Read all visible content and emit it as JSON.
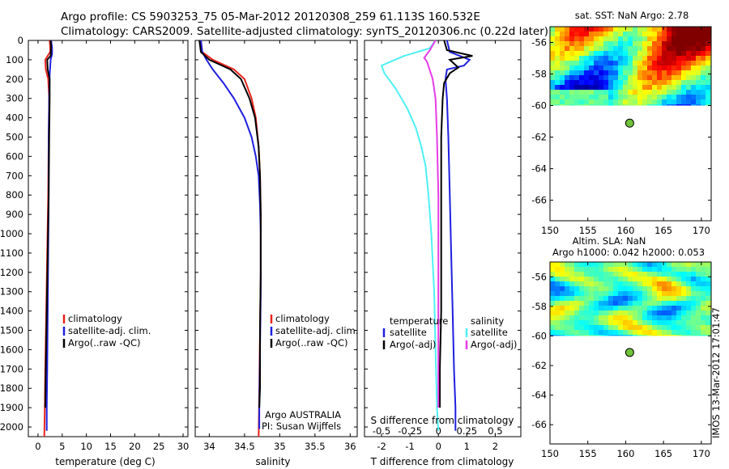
{
  "header": {
    "line1": "Argo profile: CS 5903253_75 05-Mar-2012 20120308_259 61.113S 160.532E",
    "line2": "Climatology: CARS2009. Satellite-adjusted climatology: synTS_20120306.nc (0.22d later)"
  },
  "colors": {
    "climatology": "#e8231c",
    "satellite": "#1f1fe0",
    "argo": "#000000",
    "sat_T": "#1f1fe0",
    "sat_S": "#4ff0f4",
    "argo_S": "#e63ce6",
    "float_marker": "#6fc43a"
  },
  "chart_data": [
    {
      "type": "line",
      "name": "temperature-profile",
      "xlabel": "temperature (deg C)",
      "ylabel": "",
      "xlim": [
        -2,
        31
      ],
      "ylim": [
        2050,
        0
      ],
      "xticks": [
        0,
        5,
        10,
        15,
        20,
        25,
        30
      ],
      "yticks": [
        0,
        100,
        200,
        300,
        400,
        500,
        600,
        700,
        800,
        900,
        1000,
        1100,
        1200,
        1300,
        1400,
        1500,
        1600,
        1700,
        1800,
        1900,
        2000
      ],
      "legend": [
        "climatology",
        "satellite-adj. clim.",
        "Argo(..raw -QC)"
      ],
      "series": [
        {
          "name": "climatology",
          "color_key": "climatology",
          "points": [
            [
              2.4,
              0
            ],
            [
              2.5,
              30
            ],
            [
              2.5,
              60
            ],
            [
              1.5,
              100
            ],
            [
              1.6,
              150
            ],
            [
              2.1,
              200
            ],
            [
              2.3,
              300
            ],
            [
              2.2,
              500
            ],
            [
              2.1,
              800
            ],
            [
              1.9,
              1100
            ],
            [
              1.7,
              1400
            ],
            [
              1.5,
              1700
            ],
            [
              1.4,
              1900
            ],
            [
              1.3,
              2050
            ]
          ]
        },
        {
          "name": "satellite-adj. clim.",
          "color_key": "satellite",
          "points": [
            [
              2.7,
              0
            ],
            [
              2.9,
              40
            ],
            [
              2.9,
              70
            ],
            [
              2.6,
              100
            ],
            [
              2.4,
              180
            ],
            [
              2.3,
              300
            ],
            [
              2.2,
              500
            ],
            [
              2.2,
              800
            ],
            [
              2.1,
              1100
            ],
            [
              2.0,
              1400
            ],
            [
              1.9,
              1700
            ],
            [
              1.8,
              1900
            ],
            [
              1.8,
              2020
            ]
          ]
        },
        {
          "name": "Argo(..raw -QC)",
          "color_key": "argo",
          "points": [
            [
              2.6,
              0
            ],
            [
              2.7,
              40
            ],
            [
              2.6,
              80
            ],
            [
              1.9,
              100
            ],
            [
              2.0,
              150
            ],
            [
              2.4,
              200
            ],
            [
              2.4,
              300
            ],
            [
              2.3,
              500
            ],
            [
              2.2,
              800
            ],
            [
              2.0,
              1100
            ],
            [
              1.8,
              1400
            ],
            [
              1.6,
              1700
            ],
            [
              1.5,
              1900
            ]
          ]
        }
      ]
    },
    {
      "type": "line",
      "name": "salinity-profile",
      "xlabel": "salinity",
      "xlim": [
        33.8,
        36.1
      ],
      "ylim": [
        2050,
        0
      ],
      "xticks": [
        34,
        34.5,
        35,
        35.5,
        36
      ],
      "legend": [
        "climatology",
        "satellite-adj. clim.",
        "Argo(..raw -QC)"
      ],
      "annotation": [
        "Argo AUSTRALIA",
        "PI: Susan Wijffels"
      ],
      "series": [
        {
          "name": "climatology",
          "color_key": "climatology",
          "points": [
            [
              33.88,
              0
            ],
            [
              33.9,
              60
            ],
            [
              34.05,
              100
            ],
            [
              34.35,
              150
            ],
            [
              34.5,
              200
            ],
            [
              34.6,
              300
            ],
            [
              34.66,
              400
            ],
            [
              34.7,
              550
            ],
            [
              34.72,
              700
            ],
            [
              34.73,
              900
            ],
            [
              34.73,
              1200
            ],
            [
              34.72,
              1500
            ],
            [
              34.71,
              1800
            ],
            [
              34.7,
              2050
            ]
          ]
        },
        {
          "name": "satellite-adj. clim.",
          "color_key": "satellite",
          "points": [
            [
              33.88,
              0
            ],
            [
              33.9,
              60
            ],
            [
              33.96,
              100
            ],
            [
              34.05,
              150
            ],
            [
              34.2,
              220
            ],
            [
              34.35,
              300
            ],
            [
              34.5,
              400
            ],
            [
              34.6,
              500
            ],
            [
              34.66,
              600
            ],
            [
              34.7,
              700
            ],
            [
              34.72,
              850
            ],
            [
              34.73,
              1000
            ],
            [
              34.73,
              1300
            ],
            [
              34.72,
              1600
            ],
            [
              34.71,
              1900
            ],
            [
              34.71,
              2010
            ]
          ]
        },
        {
          "name": "Argo(..raw -QC)",
          "color_key": "argo",
          "points": [
            [
              33.86,
              0
            ],
            [
              33.88,
              60
            ],
            [
              34.0,
              100
            ],
            [
              34.3,
              150
            ],
            [
              34.45,
              200
            ],
            [
              34.57,
              300
            ],
            [
              34.65,
              400
            ],
            [
              34.7,
              550
            ],
            [
              34.72,
              700
            ],
            [
              34.73,
              900
            ],
            [
              34.73,
              1200
            ],
            [
              34.72,
              1500
            ],
            [
              34.72,
              1800
            ],
            [
              34.71,
              1900
            ]
          ]
        }
      ]
    },
    {
      "type": "line",
      "name": "difference-profile",
      "xlabel": "T difference from climatology",
      "xlabel_top": "S difference from climatology",
      "xlim": [
        -2.6,
        2.9
      ],
      "ylim": [
        2050,
        0
      ],
      "xticks": [
        -2,
        -1,
        0,
        1,
        2
      ],
      "xticks_S": [
        -0.5,
        -0.25,
        0,
        0.25,
        0.5
      ],
      "legend_left_title": "temperature",
      "legend_right_title": "salinity",
      "legend_left": [
        "satellite",
        "Argo(-adj)"
      ],
      "legend_right": [
        "satellite",
        "Argo(-adj)"
      ],
      "series": [
        {
          "name": "temperature satellite",
          "color_key": "sat_T",
          "points": [
            [
              0.3,
              0
            ],
            [
              0.4,
              60
            ],
            [
              1.1,
              100
            ],
            [
              0.9,
              130
            ],
            [
              0.3,
              150
            ],
            [
              0.25,
              200
            ],
            [
              0.3,
              300
            ],
            [
              0.35,
              500
            ],
            [
              0.4,
              800
            ],
            [
              0.45,
              1100
            ],
            [
              0.5,
              1400
            ],
            [
              0.55,
              1700
            ],
            [
              0.6,
              1900
            ],
            [
              0.6,
              2020
            ]
          ]
        },
        {
          "name": "salinity satellite",
          "color_key": "sat_S",
          "points": [
            [
              -0.1,
              0
            ],
            [
              -0.3,
              40
            ],
            [
              -1.2,
              80
            ],
            [
              -2.0,
              130
            ],
            [
              -1.9,
              170
            ],
            [
              -1.5,
              250
            ],
            [
              -1.1,
              350
            ],
            [
              -0.8,
              450
            ],
            [
              -0.6,
              550
            ],
            [
              -0.45,
              650
            ],
            [
              -0.35,
              800
            ],
            [
              -0.25,
              1000
            ],
            [
              -0.15,
              1300
            ],
            [
              -0.1,
              1600
            ],
            [
              -0.05,
              1900
            ],
            [
              0.0,
              2020
            ]
          ]
        },
        {
          "name": "temperature Argo(-adj)",
          "color_key": "argo",
          "points": [
            [
              0.2,
              0
            ],
            [
              0.3,
              50
            ],
            [
              1.2,
              80
            ],
            [
              0.4,
              100
            ],
            [
              0.7,
              140
            ],
            [
              0.4,
              170
            ],
            [
              0.2,
              220
            ],
            [
              0.15,
              300
            ],
            [
              0.1,
              500
            ],
            [
              0.1,
              800
            ],
            [
              0.1,
              1100
            ],
            [
              0.1,
              1400
            ],
            [
              0.05,
              1700
            ],
            [
              0.05,
              1900
            ]
          ]
        },
        {
          "name": "salinity Argo(-adj)",
          "color_key": "argo_S",
          "points": [
            [
              -0.1,
              0
            ],
            [
              -0.3,
              50
            ],
            [
              -0.5,
              90
            ],
            [
              -0.4,
              110
            ],
            [
              -0.2,
              200
            ],
            [
              -0.1,
              300
            ],
            [
              -0.05,
              500
            ],
            [
              0.0,
              800
            ],
            [
              0.0,
              1100
            ],
            [
              0.0,
              1400
            ],
            [
              0.0,
              1700
            ],
            [
              0.0,
              1900
            ]
          ]
        }
      ]
    },
    {
      "type": "heatmap",
      "name": "sst-map",
      "title": "sat. SST: NaN Argo: 2.78",
      "xlim": [
        150,
        171.3
      ],
      "ylim": [
        -67.3,
        -55
      ],
      "xticks": [
        150,
        155,
        160,
        165,
        170
      ],
      "yticks": [
        -56,
        -58,
        -60,
        -62,
        -64,
        -66
      ],
      "float_position": [
        160.532,
        -61.113
      ]
    },
    {
      "type": "heatmap",
      "name": "sla-map",
      "title_line1": "Altim. SLA: NaN",
      "title_line2": "Argo h1000: 0.042 h2000: 0.053",
      "xlim": [
        150,
        171.3
      ],
      "ylim": [
        -67.3,
        -55
      ],
      "xticks": [
        150,
        155,
        160,
        165,
        170
      ],
      "yticks": [
        -56,
        -58,
        -60,
        -62,
        -64,
        -66
      ],
      "float_position": [
        160.532,
        -61.113
      ]
    }
  ],
  "footer": {
    "stamp": "IMOS 13-Mar-2012 17:01:47"
  }
}
